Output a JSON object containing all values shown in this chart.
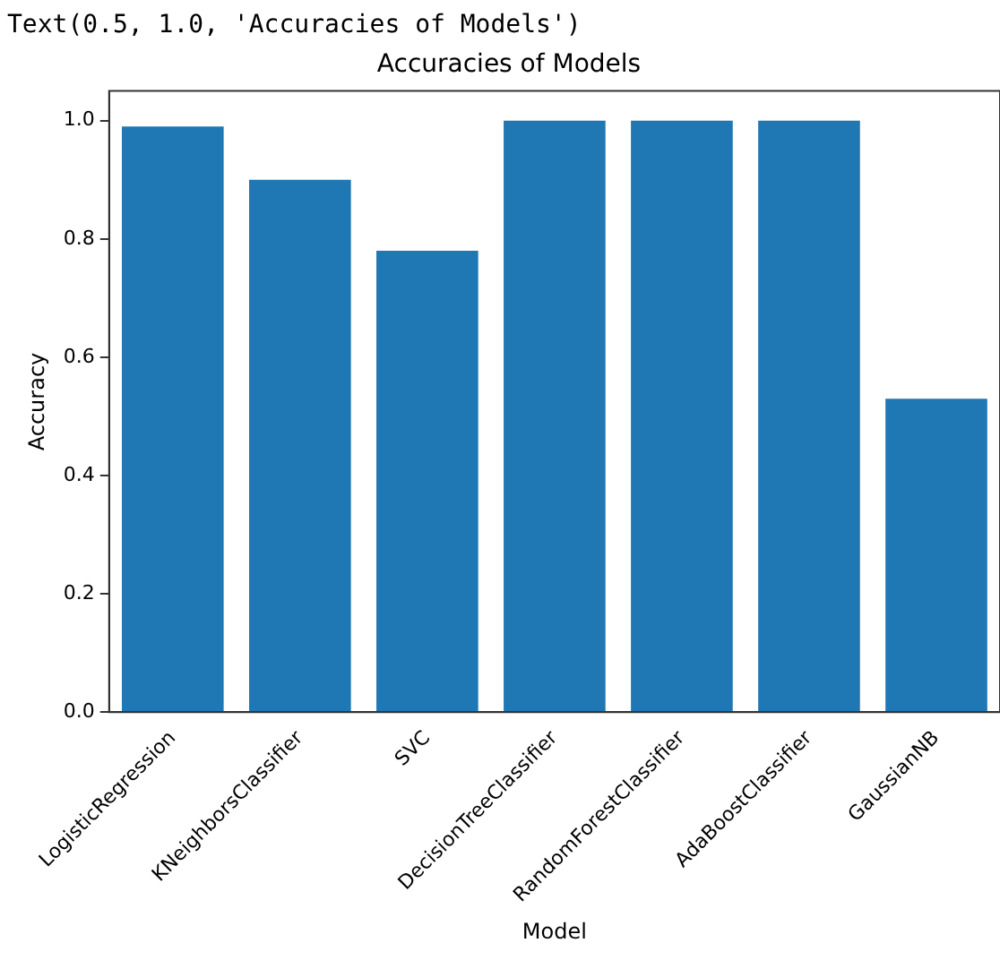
{
  "chart_data": {
    "type": "bar",
    "title": "Accuracies of Models",
    "xlabel": "Model",
    "ylabel": "Accuracy",
    "annotations": [
      "Text(0.5, 1.0, 'Accuracies of Models')"
    ],
    "categories": [
      "LogisticRegression",
      "KNeighborsClassifier",
      "SVC",
      "DecisionTreeClassifier",
      "RandomForestClassifier",
      "AdaBoostClassifier",
      "GaussianNB"
    ],
    "values": [
      0.99,
      0.9,
      0.78,
      1.0,
      1.0,
      1.0,
      0.53
    ],
    "color": "#1f77b4",
    "ylim": [
      0,
      1.05
    ],
    "yticks": [
      {
        "value": 0,
        "label": "0.0"
      },
      0.2,
      0.4,
      0.6,
      0.8,
      {
        "value": 1,
        "label": "1.0"
      }
    ],
    "grid": false
  }
}
